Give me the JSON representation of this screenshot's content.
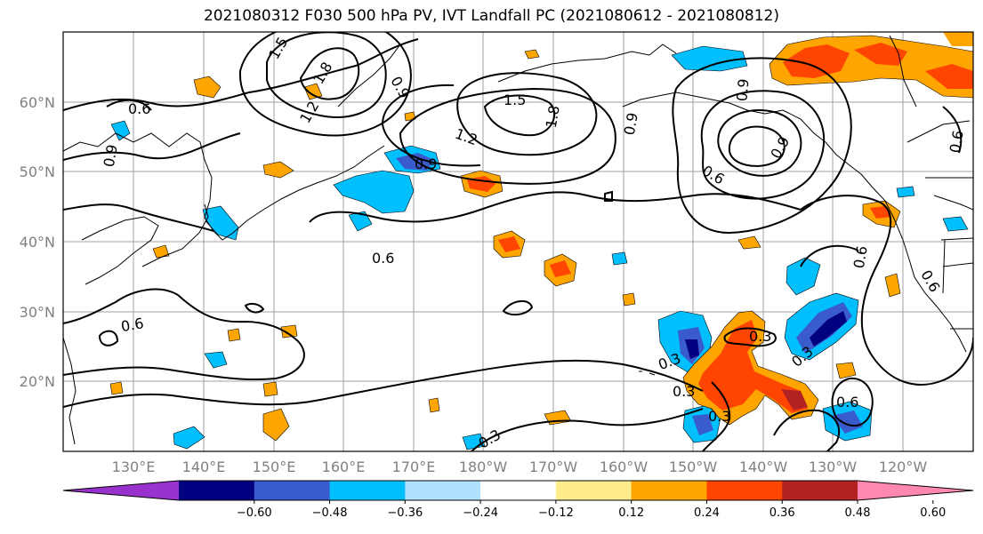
{
  "title": "2021080312 F030 500 hPa PV, IVT Landfall PC (2021080612 - 2021080812)",
  "lat_ticks": [
    "60°N",
    "50°N",
    "40°N",
    "30°N",
    "20°N"
  ],
  "lon_ticks": [
    "130°E",
    "140°E",
    "150°E",
    "160°E",
    "170°E",
    "180°W",
    "170°W",
    "160°W",
    "150°W",
    "140°W",
    "130°W",
    "120°W"
  ],
  "colorbar": {
    "colors": [
      "#9932cc",
      "#000080",
      "#3a5bcc",
      "#00bfff",
      "#b0e2ff",
      "#ffffff",
      "#ffec8b",
      "#ffa500",
      "#ff4500",
      "#b22222",
      "#ff88b0"
    ],
    "tick_labels": [
      "−0.60",
      "−0.48",
      "−0.36",
      "−0.24",
      "−0.12",
      "0.12",
      "0.24",
      "0.36",
      "0.48",
      "0.60"
    ]
  },
  "contour_labels": [
    "0.6",
    "0.9",
    "1.5",
    "1.8",
    "1.2",
    "0.9",
    "1.5",
    "1.8",
    "1.2",
    "0.9",
    "0.6",
    "0.9",
    "0.6",
    "0.9",
    "0.6",
    "0.6",
    "0.3",
    "0.3",
    "0.3",
    "0.3",
    "0.3",
    "0.3",
    "0.6",
    "0.6",
    "0.6",
    "0.9"
  ]
}
